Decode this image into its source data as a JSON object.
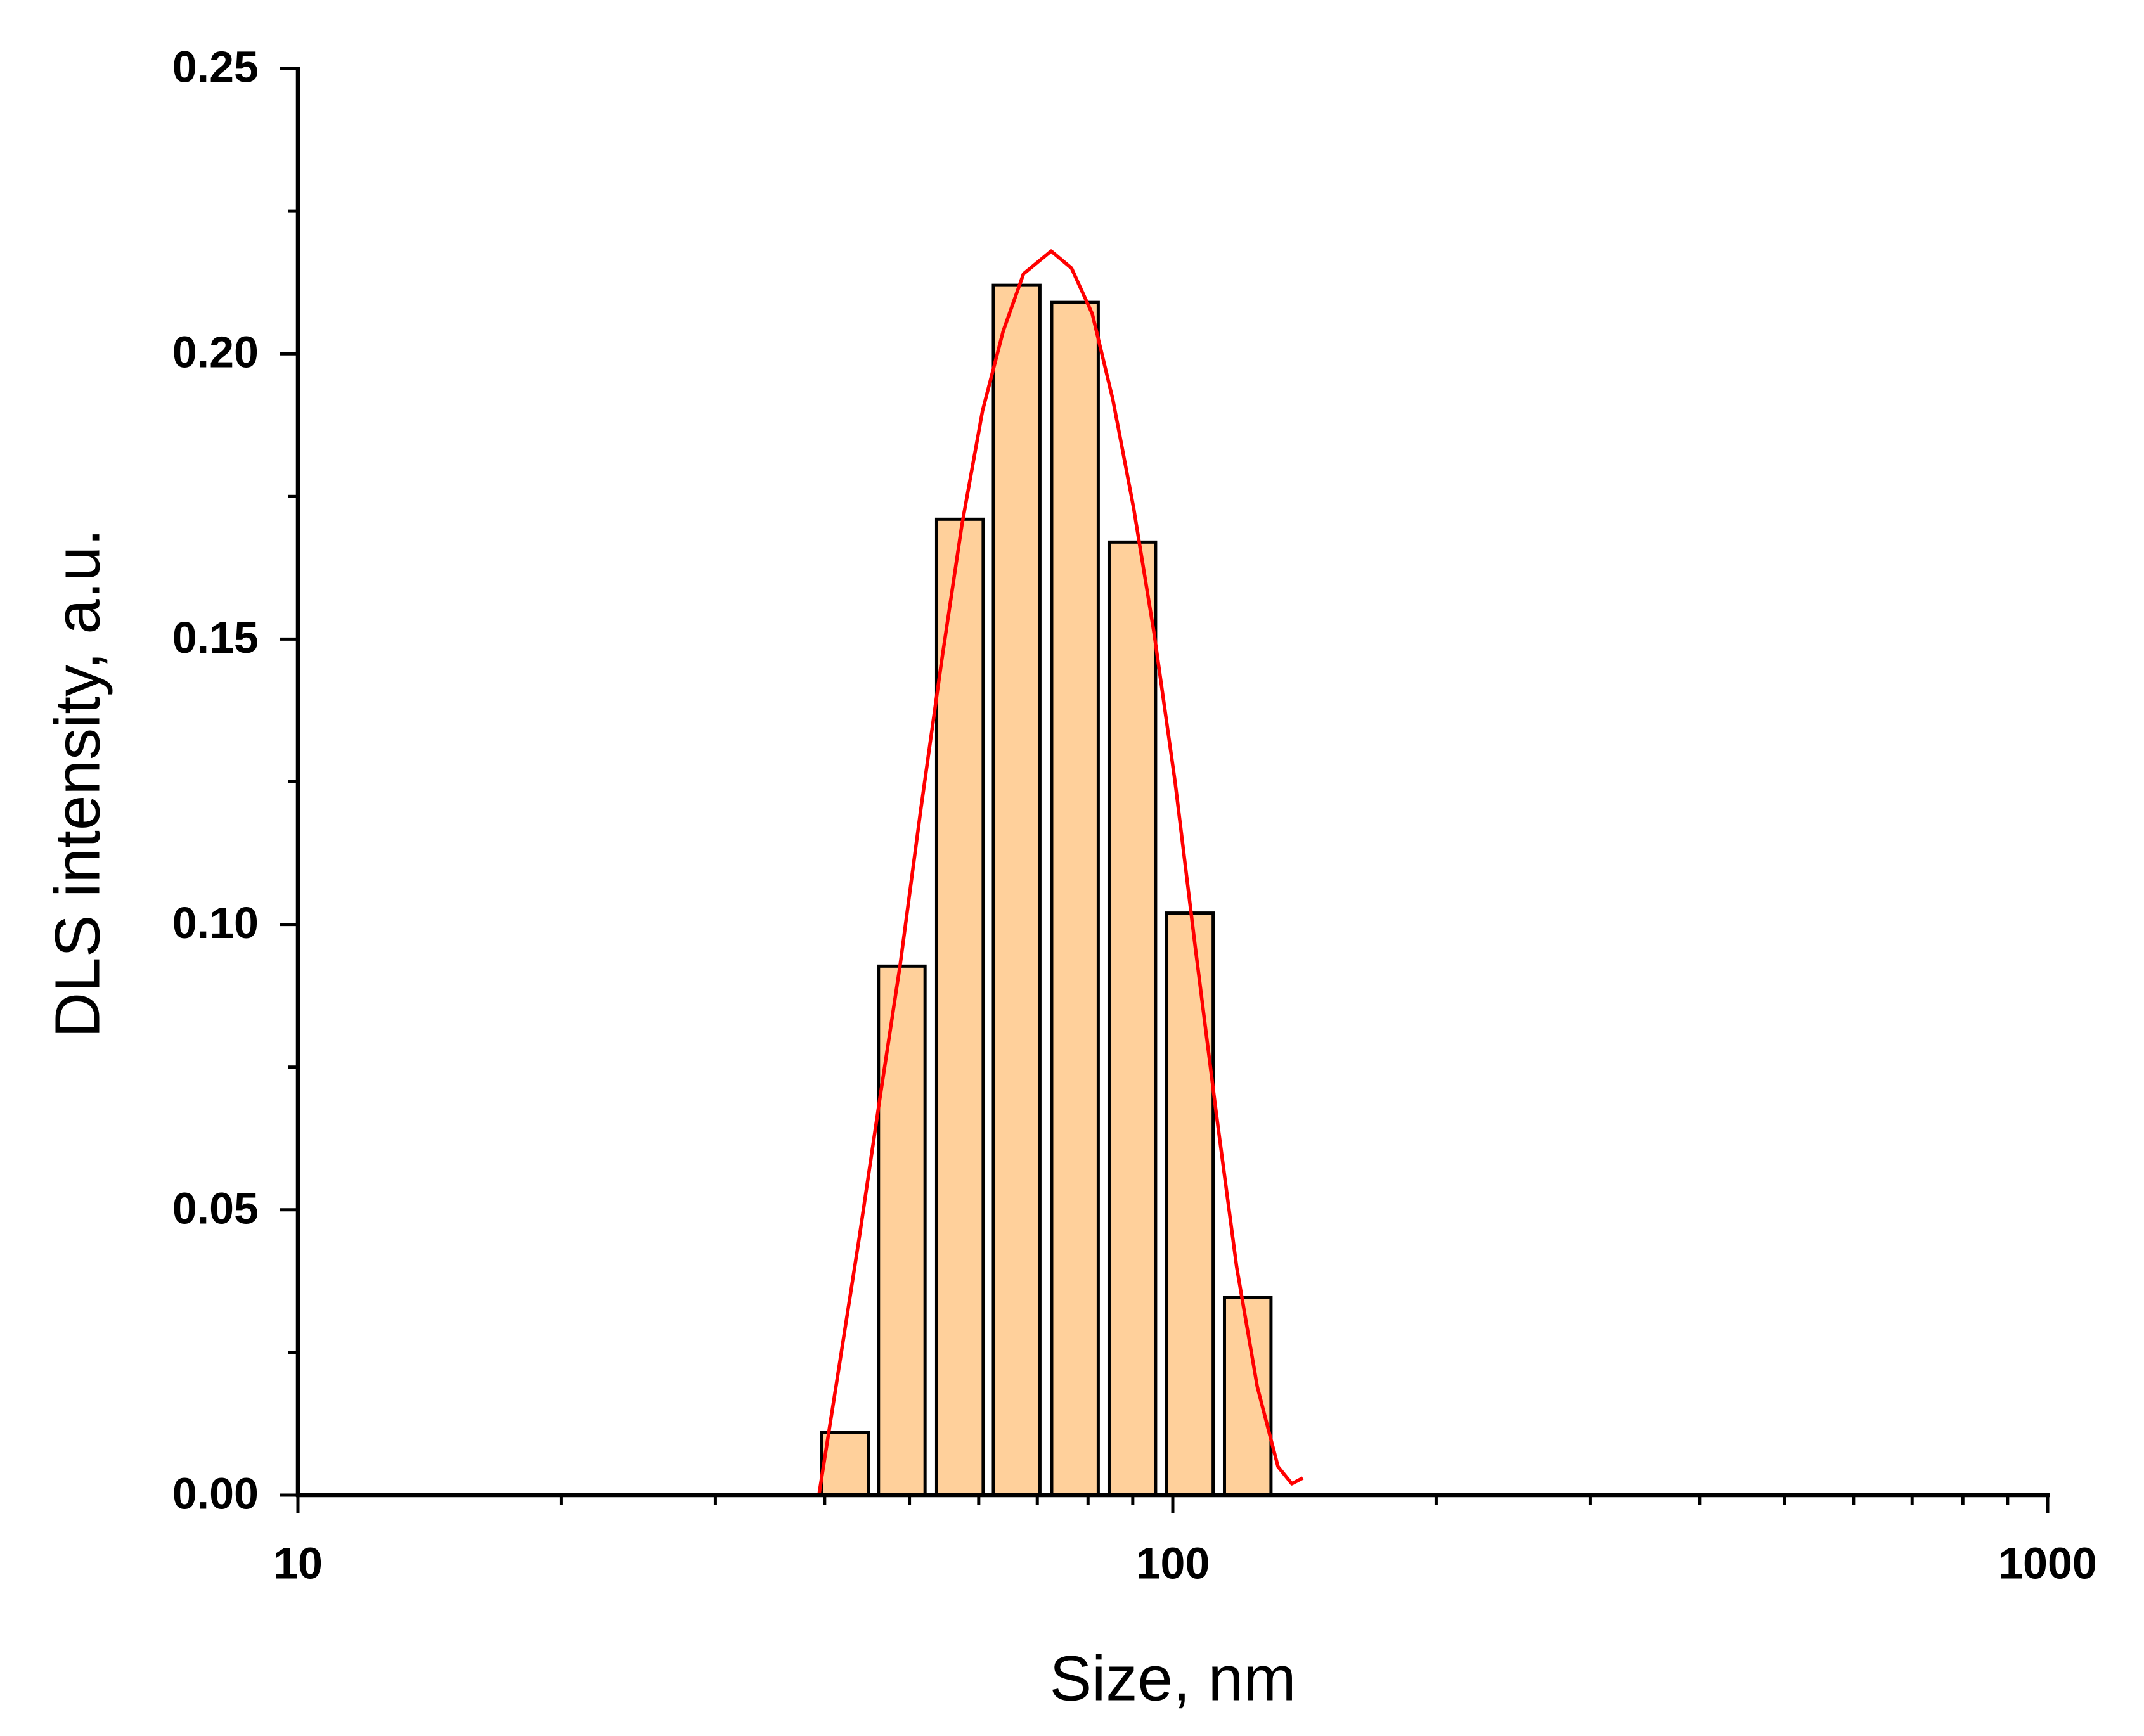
{
  "chart_data": {
    "type": "bar",
    "xlabel": "Size, nm",
    "ylabel": "DLS intensity, a.u.",
    "x": [
      42.2,
      49.0,
      57.1,
      66.3,
      77.3,
      89.9,
      104.6,
      121.8
    ],
    "values": [
      0.011,
      0.0927,
      0.171,
      0.212,
      0.209,
      0.167,
      0.102,
      0.0347
    ],
    "color": "#ffd09b",
    "edgecolor": "#000000",
    "xscale": "log",
    "xlim": [
      10,
      1000
    ],
    "xticks": [
      10,
      100,
      1000
    ],
    "xminor": [
      20,
      30,
      40,
      50,
      60,
      70,
      80,
      90,
      200,
      300,
      400,
      500,
      600,
      700,
      800,
      900
    ],
    "ylim": [
      0,
      0.25
    ],
    "yticks": [
      {
        "value": 0,
        "label": "0.00"
      },
      {
        "value": 0.05,
        "label": "0.05"
      },
      {
        "value": 0.1,
        "label": "0.10"
      },
      {
        "value": 0.15,
        "label": "0.15"
      },
      {
        "value": 0.2,
        "label": "0.20"
      },
      {
        "value": 0.25,
        "label": "0.25"
      }
    ],
    "yminor": [
      0.025,
      0.075,
      0.125,
      0.175,
      0.225
    ],
    "fit": {
      "color": "#ff0000",
      "x": [
        39.4,
        41.4,
        43.8,
        46.2,
        48.8,
        51.5,
        54.4,
        57.4,
        60.6,
        64.0,
        67.5,
        72.6,
        76.6,
        80.9,
        85.4,
        90.2,
        95.2,
        100.6,
        106.1,
        112.1,
        118.3,
        124.9,
        131.9,
        136.8,
        140.8
      ],
      "values": [
        0,
        0.021,
        0.045,
        0.069,
        0.093,
        0.12,
        0.146,
        0.17,
        0.19,
        0.204,
        0.214,
        0.218,
        0.215,
        0.207,
        0.192,
        0.173,
        0.151,
        0.125,
        0.096,
        0.067,
        0.04,
        0.019,
        0.005,
        0.002,
        0.003
      ]
    }
  }
}
